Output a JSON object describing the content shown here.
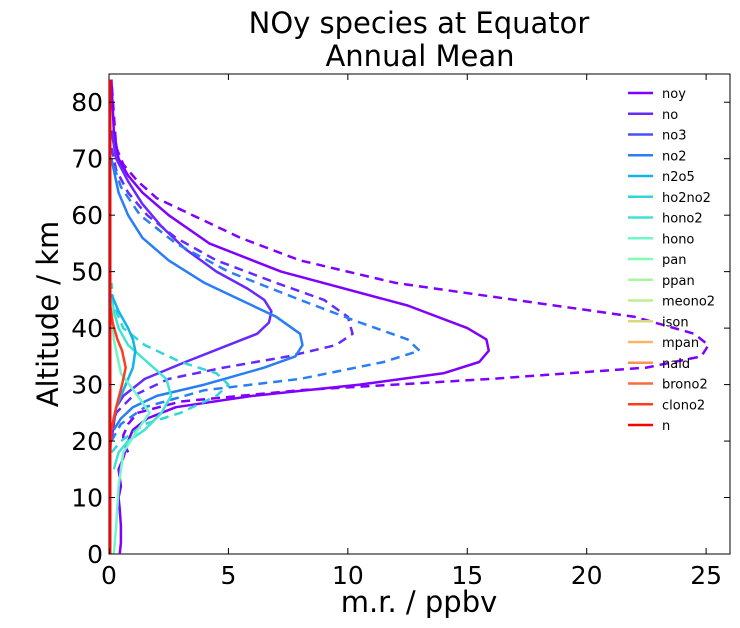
{
  "chart_data": {
    "type": "line",
    "title_line1": "NOy species at Equator",
    "title_line2": "Annual Mean",
    "xlabel": "m.r. / ppbv",
    "ylabel": "Altitude / km",
    "xlim": [
      0,
      26
    ],
    "ylim": [
      0,
      85
    ],
    "xticks": [
      0,
      5,
      10,
      15,
      20,
      25
    ],
    "yticks": [
      0,
      10,
      20,
      30,
      40,
      50,
      60,
      70,
      80
    ],
    "grid": false,
    "legend_position": "top-right",
    "legend": [
      {
        "name": "noy",
        "color": "#8000ff"
      },
      {
        "name": "no",
        "color": "#6629fe"
      },
      {
        "name": "no3",
        "color": "#4c50fc"
      },
      {
        "name": "no2",
        "color": "#2a7ef5"
      },
      {
        "name": "n2o5",
        "color": "#12b2ec"
      },
      {
        "name": "ho2no2",
        "color": "#33d6d6"
      },
      {
        "name": "hono2",
        "color": "#40e4d3"
      },
      {
        "name": "hono",
        "color": "#6ff7c9"
      },
      {
        "name": "pan",
        "color": "#80ffb4"
      },
      {
        "name": "ppan",
        "color": "#a6f7a0"
      },
      {
        "name": "meono2",
        "color": "#c0ed92"
      },
      {
        "name": "ison",
        "color": "#d9d87e"
      },
      {
        "name": "mpan",
        "color": "#ffb468"
      },
      {
        "name": "nald",
        "color": "#ff9150"
      },
      {
        "name": "brono2",
        "color": "#ff6a3c"
      },
      {
        "name": "clono2",
        "color": "#ff3c20"
      },
      {
        "name": "n",
        "color": "#ff0000"
      }
    ],
    "series": [
      {
        "name": "noy",
        "color": "#8000ff",
        "dashed": true,
        "x": [
          0.8,
          0.6,
          0.6,
          0.7,
          0.8,
          1.2,
          3.0,
          8.0,
          16.0,
          22.5,
          24.8,
          25.1,
          24.5,
          22.0,
          17.0,
          12.0,
          8.0,
          5.5,
          3.5,
          2.0,
          1.2,
          0.6,
          0.3,
          0.2,
          0.1
        ],
        "y": [
          18,
          20,
          21,
          22,
          23,
          25,
          27,
          29,
          31,
          33,
          35,
          37,
          39,
          42,
          45,
          48,
          52,
          56,
          60,
          63,
          66,
          69,
          72,
          78,
          84
        ]
      },
      {
        "name": "noy",
        "color": "#8000ff",
        "dashed": false,
        "x": [
          0.45,
          0.5,
          0.5,
          0.45,
          0.4,
          0.5,
          0.4,
          0.6,
          0.8,
          1.0,
          1.6,
          2.8,
          6.0,
          10.5,
          14.0,
          15.5,
          15.9,
          15.8,
          15.0,
          12.5,
          7.2,
          4.2,
          2.5,
          1.4,
          0.8,
          0.4,
          0.2,
          0.1
        ],
        "y": [
          0,
          2,
          5,
          8,
          10,
          12,
          15,
          17,
          20,
          22,
          24,
          26,
          28,
          30,
          32,
          34,
          36,
          38,
          40,
          44,
          50,
          55,
          60,
          64,
          67,
          70,
          75,
          84
        ]
      },
      {
        "name": "no",
        "color": "#6629fe",
        "dashed": false,
        "x": [
          0.1,
          0.2,
          0.3,
          0.6,
          1.5,
          3.2,
          5.0,
          6.2,
          6.7,
          6.8,
          6.5,
          5.8,
          4.5,
          3.2,
          2.2,
          1.4,
          0.8,
          0.3,
          0.1
        ],
        "y": [
          20,
          23,
          26,
          28,
          31,
          34,
          37,
          39,
          41,
          43,
          45,
          47,
          50,
          54,
          58,
          62,
          66,
          70,
          75
        ]
      },
      {
        "name": "no",
        "color": "#6629fe",
        "dashed": true,
        "x": [
          0.1,
          0.3,
          1.0,
          2.5,
          4.8,
          7.5,
          9.5,
          10.2,
          10.0,
          9.0,
          7.0,
          4.5,
          2.8,
          1.6,
          0.8,
          0.3,
          0.1
        ],
        "y": [
          22,
          25,
          28,
          31,
          33,
          35,
          37,
          39,
          42,
          45,
          48,
          52,
          56,
          60,
          64,
          68,
          72
        ]
      },
      {
        "name": "no2",
        "color": "#2a7ef5",
        "dashed": false,
        "x": [
          0.2,
          0.5,
          1.0,
          2.0,
          4.0,
          6.5,
          7.8,
          8.1,
          8.0,
          7.0,
          5.5,
          4.0,
          2.5,
          1.4,
          0.8,
          0.4,
          0.1
        ],
        "y": [
          22,
          24,
          26,
          28,
          30,
          33,
          35,
          37,
          39,
          42,
          45,
          48,
          52,
          56,
          60,
          64,
          70
        ]
      },
      {
        "name": "no2",
        "color": "#2a7ef5",
        "dashed": true,
        "x": [
          0.1,
          0.5,
          1.5,
          4.0,
          8.0,
          11.5,
          13.0,
          12.5,
          10.5,
          8.0,
          5.0,
          2.8,
          1.3,
          0.5,
          0.1
        ],
        "y": [
          20,
          23,
          26,
          29,
          31,
          34,
          36,
          38,
          41,
          45,
          50,
          55,
          60,
          65,
          70
        ]
      },
      {
        "name": "ho2no2",
        "color": "#33d6d6",
        "dashed": true,
        "x": [
          0.1,
          0.5,
          1.5,
          3.0,
          4.5,
          5.0,
          4.5,
          3.0,
          1.5,
          0.6,
          0.2,
          0.1
        ],
        "y": [
          18,
          20,
          23,
          25,
          28,
          30,
          32,
          34,
          37,
          40,
          44,
          48
        ]
      },
      {
        "name": "hono2",
        "color": "#40e4d3",
        "dashed": false,
        "x": [
          0.2,
          0.4,
          0.8,
          1.5,
          2.2,
          2.6,
          2.4,
          1.6,
          0.8,
          0.4,
          0.2,
          0.1
        ],
        "y": [
          15,
          18,
          20,
          22,
          25,
          28,
          31,
          34,
          37,
          40,
          43,
          46
        ]
      },
      {
        "name": "n2o5",
        "color": "#12b2ec",
        "dashed": false,
        "x": [
          0.1,
          0.3,
          0.7,
          1.0,
          1.1,
          1.0,
          0.8,
          0.4,
          0.1
        ],
        "y": [
          22,
          26,
          30,
          33,
          36,
          38,
          40,
          43,
          46
        ]
      },
      {
        "name": "hono",
        "color": "#6ff7c9",
        "dashed": false,
        "x": [
          0.2,
          0.3,
          0.4,
          0.6,
          1.2,
          1.7,
          1.2,
          0.5,
          0.2,
          0.1
        ],
        "y": [
          0,
          5,
          12,
          18,
          22,
          25,
          28,
          32,
          38,
          44
        ]
      },
      {
        "name": "clono2",
        "color": "#ff3c20",
        "dashed": false,
        "x": [
          0.05,
          0.1,
          0.3,
          0.55,
          0.7,
          0.55,
          0.35,
          0.15,
          0.05
        ],
        "y": [
          18,
          22,
          26,
          30,
          33,
          36,
          38,
          41,
          44
        ]
      },
      {
        "name": "n",
        "color": "#ff0000",
        "dashed": false,
        "x": [
          0.05,
          0.05,
          0.05
        ],
        "y": [
          0,
          40,
          84
        ]
      }
    ]
  }
}
